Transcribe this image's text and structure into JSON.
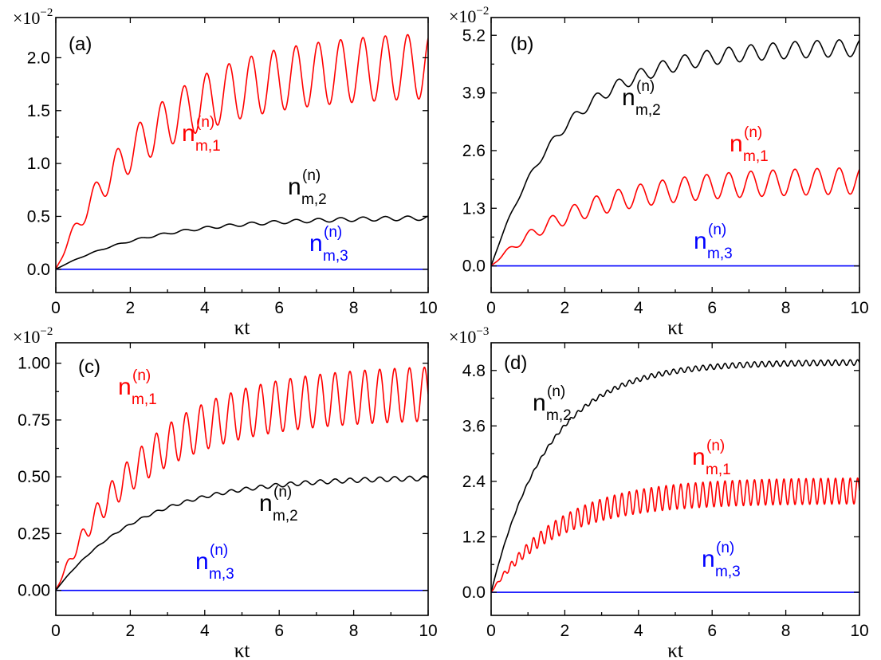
{
  "chart_data": [
    {
      "type": "line",
      "panel_label": "(a)",
      "scale_label": {
        "base": "×10",
        "exponent": "−2"
      },
      "xlabel": "κt",
      "xlim": [
        0,
        10
      ],
      "xticks": [
        0,
        2,
        4,
        6,
        8,
        10
      ],
      "xtick_labels": [
        "0",
        "2",
        "4",
        "6",
        "8",
        "10"
      ],
      "ylim": [
        -0.22,
        2.38
      ],
      "yticks": [
        0.0,
        0.5,
        1.0,
        1.5,
        2.0
      ],
      "ytick_labels": [
        "0.0",
        "0.5",
        "1.0",
        "1.5",
        "2.0"
      ],
      "series": [
        {
          "name": "n_m,1^(n)",
          "color": "#ff0000",
          "label_base": "n",
          "label_sup": "(n)",
          "label_sub": "m,1",
          "model": {
            "mean": 1.95,
            "tau": 2.4,
            "amplitude": 0.31,
            "period": 0.6,
            "phase": 0.3,
            "amplitude_growth": 0.9
          }
        },
        {
          "name": "n_m,2^(n)",
          "color": "#000000",
          "label_base": "n",
          "label_sup": "(n)",
          "label_sub": "m,2",
          "model": {
            "mean": 0.495,
            "tau": 2.6,
            "amplitude": 0.025,
            "period": 0.6,
            "phase": 0.3,
            "amplitude_growth": 2.0
          }
        },
        {
          "name": "n_m,3^(n)",
          "color": "#0000ff",
          "label_base": "n",
          "label_sup": "(n)",
          "label_sub": "m,3",
          "model": {
            "mean": 0.0,
            "tau": 1.0,
            "amplitude": 0.0,
            "period": 1.0,
            "phase": 0.0,
            "amplitude_growth": 1.0
          }
        }
      ]
    },
    {
      "type": "line",
      "panel_label": "(b)",
      "scale_label": {
        "base": "×10",
        "exponent": "−2"
      },
      "xlabel": "κt",
      "xlim": [
        0,
        10
      ],
      "xticks": [
        0,
        2,
        4,
        6,
        8,
        10
      ],
      "xtick_labels": [
        "0",
        "2",
        "4",
        "6",
        "8",
        "10"
      ],
      "ylim": [
        -0.6,
        5.6
      ],
      "yticks": [
        0.0,
        1.3,
        2.6,
        3.9,
        5.2
      ],
      "ytick_labels": [
        "0.0",
        "1.3",
        "2.6",
        "3.9",
        "5.2"
      ],
      "series": [
        {
          "name": "n_m,2^(n)",
          "color": "#000000",
          "label_base": "n",
          "label_sup": "(n)",
          "label_sub": "m,2",
          "model": {
            "mean": 4.95,
            "tau": 2.0,
            "amplitude": 0.2,
            "period": 0.6,
            "phase": 0.3,
            "amplitude_growth": 1.5
          }
        },
        {
          "name": "n_m,1^(n)",
          "color": "#ff0000",
          "label_base": "n",
          "label_sup": "(n)",
          "label_sub": "m,1",
          "model": {
            "mean": 1.95,
            "tau": 2.4,
            "amplitude": 0.3,
            "period": 0.6,
            "phase": 0.3,
            "amplitude_growth": 0.9
          }
        },
        {
          "name": "n_m,3^(n)",
          "color": "#0000ff",
          "label_base": "n",
          "label_sup": "(n)",
          "label_sub": "m,3",
          "model": {
            "mean": 0.0,
            "tau": 1.0,
            "amplitude": 0.0,
            "period": 1.0,
            "phase": 0.0,
            "amplitude_growth": 1.0
          }
        }
      ]
    },
    {
      "type": "line",
      "panel_label": "(c)",
      "scale_label": {
        "base": "×10",
        "exponent": "−2"
      },
      "xlabel": "κt",
      "xlim": [
        0,
        10
      ],
      "xticks": [
        0,
        2,
        4,
        6,
        8,
        10
      ],
      "xtick_labels": [
        "0",
        "2",
        "4",
        "6",
        "8",
        "10"
      ],
      "ylim": [
        -0.11,
        1.09
      ],
      "yticks": [
        0.0,
        0.25,
        0.5,
        0.75,
        1.0
      ],
      "ytick_labels": [
        "0.00",
        "0.25",
        "0.50",
        "0.75",
        "1.00"
      ],
      "series": [
        {
          "name": "n_m,1^(n)",
          "color": "#ff0000",
          "label_base": "n",
          "label_sup": "(n)",
          "label_sub": "m,1",
          "model": {
            "mean": 0.875,
            "tau": 2.3,
            "amplitude": 0.12,
            "period": 0.4,
            "phase": 0.2,
            "amplitude_growth": 0.9
          }
        },
        {
          "name": "n_m,2^(n)",
          "color": "#000000",
          "label_base": "n",
          "label_sup": "(n)",
          "label_sub": "m,2",
          "model": {
            "mean": 0.5,
            "tau": 2.3,
            "amplitude": 0.012,
            "period": 0.4,
            "phase": 0.2,
            "amplitude_growth": 2.0
          }
        },
        {
          "name": "n_m,3^(n)",
          "color": "#0000ff",
          "label_base": "n",
          "label_sup": "(n)",
          "label_sub": "m,3",
          "model": {
            "mean": 0.0,
            "tau": 1.0,
            "amplitude": 0.0,
            "period": 1.0,
            "phase": 0.0,
            "amplitude_growth": 1.0
          }
        }
      ]
    },
    {
      "type": "line",
      "panel_label": "(d)",
      "scale_label": {
        "base": "×10",
        "exponent": "−3"
      },
      "xlabel": "κt",
      "xlim": [
        0,
        10
      ],
      "xticks": [
        0,
        2,
        4,
        6,
        8,
        10
      ],
      "xtick_labels": [
        "0",
        "2",
        "4",
        "6",
        "8",
        "10"
      ],
      "ylim": [
        -0.5,
        5.4
      ],
      "yticks": [
        0.0,
        1.2,
        2.4,
        3.6,
        4.8
      ],
      "ytick_labels": [
        "0.0",
        "1.2",
        "2.4",
        "3.6",
        "4.8"
      ],
      "series": [
        {
          "name": "n_m,2^(n)",
          "color": "#000000",
          "label_base": "n",
          "label_sup": "(n)",
          "label_sub": "m,2",
          "model": {
            "mean": 4.98,
            "tau": 1.55,
            "amplitude": 0.06,
            "period": 0.2,
            "phase": 0.1,
            "amplitude_growth": 1.5
          }
        },
        {
          "name": "n_m,1^(n)",
          "color": "#ff0000",
          "label_base": "n",
          "label_sup": "(n)",
          "label_sub": "m,1",
          "model": {
            "mean": 2.2,
            "tau": 1.8,
            "amplitude": 0.28,
            "period": 0.2,
            "phase": 0.1,
            "amplitude_growth": 0.9
          }
        },
        {
          "name": "n_m,3^(n)",
          "color": "#0000ff",
          "label_base": "n",
          "label_sup": "(n)",
          "label_sub": "m,3",
          "model": {
            "mean": 0.0,
            "tau": 1.0,
            "amplitude": 0.0,
            "period": 1.0,
            "phase": 0.0,
            "amplitude_growth": 1.0
          }
        }
      ]
    }
  ]
}
